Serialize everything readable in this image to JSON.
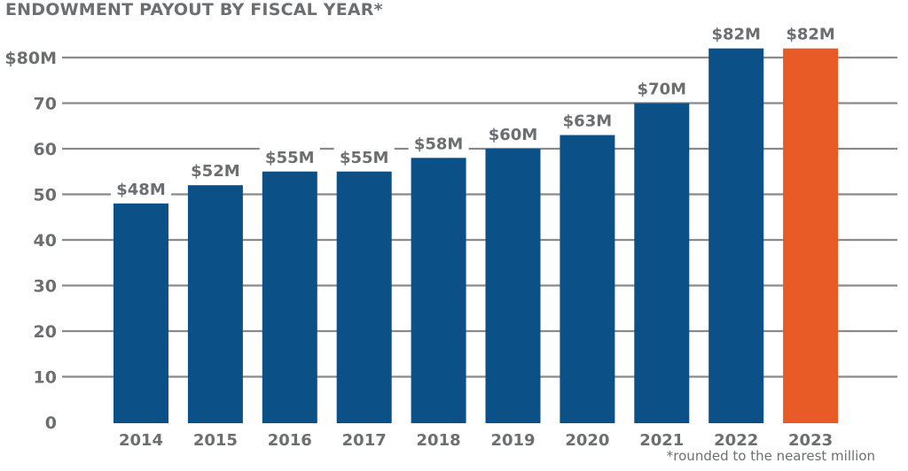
{
  "chart_data": {
    "type": "bar",
    "title": "ENDOWMENT PAYOUT BY FISCAL YEAR*",
    "xlabel": "",
    "ylabel": "",
    "categories": [
      "2014",
      "2015",
      "2016",
      "2017",
      "2018",
      "2019",
      "2020",
      "2021",
      "2022",
      "2023"
    ],
    "values": [
      48,
      52,
      55,
      55,
      58,
      60,
      63,
      70,
      82,
      82
    ],
    "data_labels": [
      "$48M",
      "$52M",
      "$55M",
      "$55M",
      "$58M",
      "$60M",
      "$63M",
      "$70M",
      "$82M",
      "$82M"
    ],
    "ylim": [
      0,
      80
    ],
    "yticks": [
      0,
      10,
      20,
      30,
      40,
      50,
      60,
      70,
      80
    ],
    "ytick_labels": [
      "0",
      "10",
      "20",
      "30",
      "40",
      "50",
      "60",
      "70",
      "$80M"
    ],
    "grid": true,
    "units": "millions USD",
    "highlight_category": "2023",
    "colors": {
      "bar": "#0b5188",
      "highlight": "#e85a26",
      "grid": "#8a8a8d",
      "text": "#6d6e71"
    },
    "footnote": "*rounded to the nearest million"
  }
}
